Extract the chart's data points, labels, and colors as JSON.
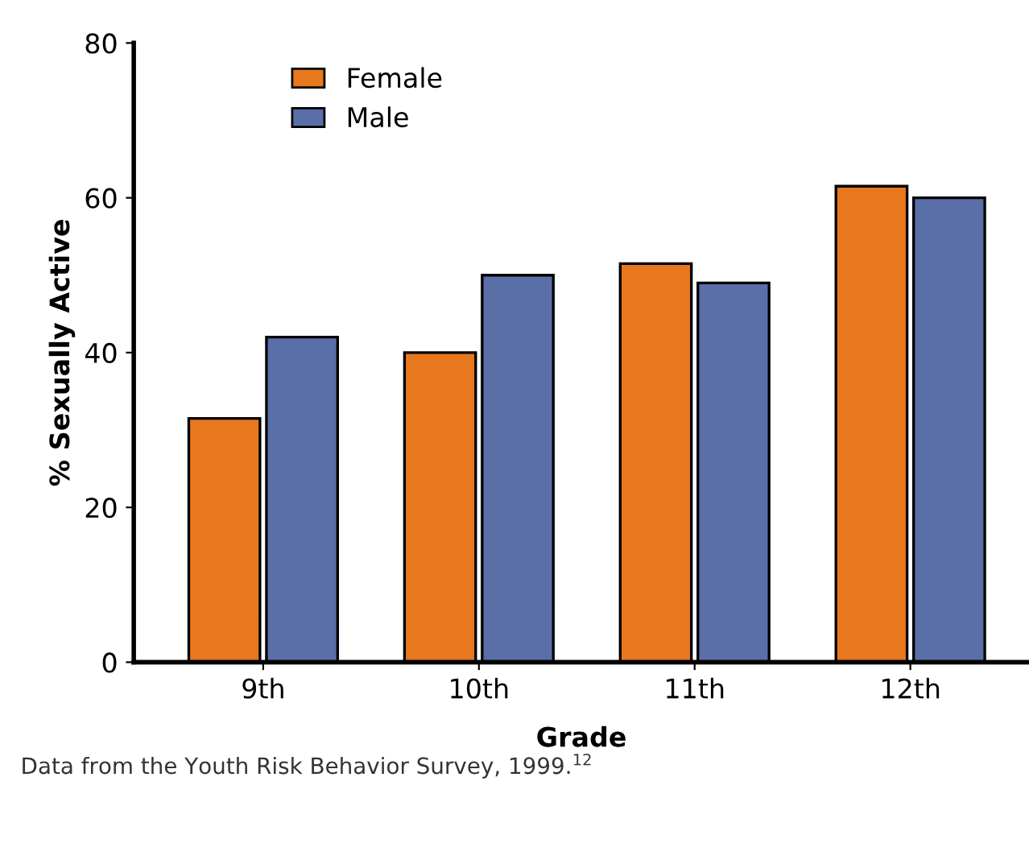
{
  "chart_data": {
    "type": "bar",
    "xlabel": "Grade",
    "ylabel": "% Sexually Active",
    "categories": [
      "9th",
      "10th",
      "11th",
      "12th"
    ],
    "series": [
      {
        "name": "Female",
        "color": "#e8781e",
        "values": [
          31.5,
          40,
          51.5,
          61.5
        ]
      },
      {
        "name": "Male",
        "color": "#5a6ea8",
        "values": [
          42,
          50,
          49,
          60
        ]
      }
    ],
    "ylim": [
      0,
      80
    ],
    "yticks": [
      0,
      20,
      40,
      60,
      80
    ],
    "grid": false,
    "legend": "top left",
    "annotations": [
      "Data from the Youth Risk Behavior Survey, 1999.$^{12}$"
    ]
  }
}
